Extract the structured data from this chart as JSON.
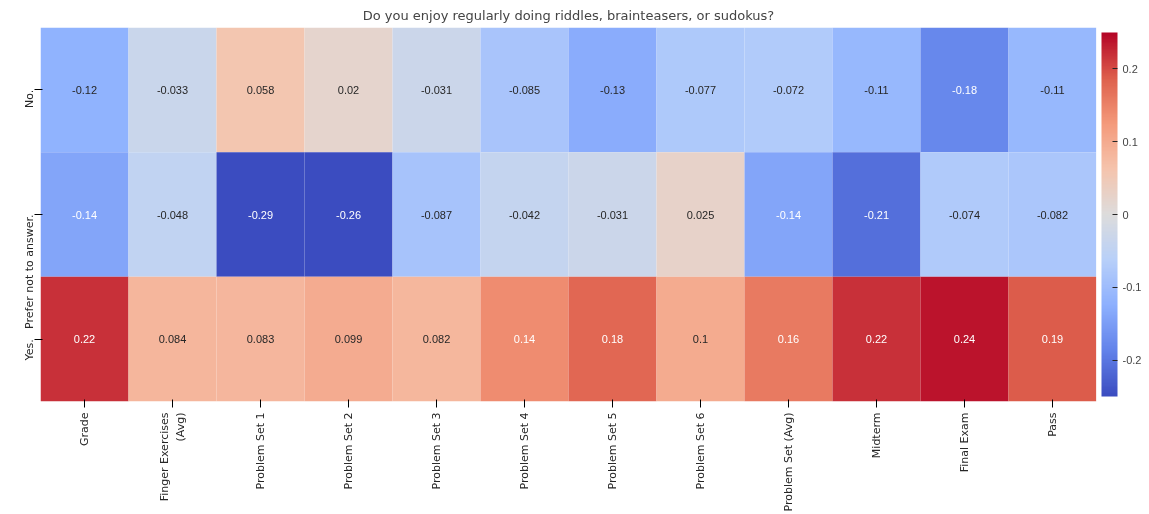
{
  "chart_data": {
    "type": "heatmap",
    "title": "Do you enjoy regularly doing riddles, brainteasers, or sudokus?",
    "categories": [
      "Grade",
      "Finger Exercises\n(Avg)",
      "Problem Set 1",
      "Problem Set 2",
      "Problem Set 3",
      "Problem Set 4",
      "Problem Set 5",
      "Problem Set 6",
      "Problem Set (Avg)",
      "Midterm",
      "Final Exam",
      "Pass"
    ],
    "y_categories": [
      "No.",
      "Prefer not to answer.",
      "Yes."
    ],
    "cells": [
      [
        -0.12,
        -0.033,
        0.058,
        0.02,
        -0.031,
        -0.085,
        -0.13,
        -0.077,
        -0.072,
        -0.11,
        -0.18,
        -0.11
      ],
      [
        -0.14,
        -0.048,
        -0.29,
        -0.26,
        -0.087,
        -0.042,
        -0.031,
        0.025,
        -0.14,
        -0.21,
        -0.074,
        -0.082
      ],
      [
        0.22,
        0.084,
        0.083,
        0.099,
        0.082,
        0.14,
        0.18,
        0.1,
        0.16,
        0.22,
        0.24,
        0.19
      ]
    ],
    "clim": [
      -0.25,
      0.25
    ],
    "cticks": [
      -0.2,
      -0.1,
      0.0,
      0.1,
      0.2
    ],
    "data_labels": true
  }
}
